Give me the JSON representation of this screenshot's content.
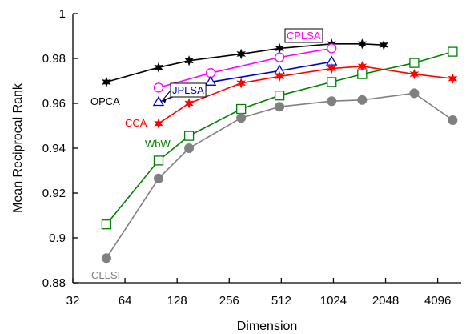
{
  "chart_data": {
    "type": "line",
    "xlabel": "Dimension",
    "ylabel": "Mean Reciprocal Rank",
    "x_scale": "log2",
    "xlim": [
      32,
      5600
    ],
    "ylim": [
      0.88,
      1.0
    ],
    "x_ticks": [
      32,
      64,
      128,
      256,
      512,
      1024,
      2048,
      4096
    ],
    "x_tick_labels": [
      "32",
      "64",
      "128",
      "256",
      "512",
      "1024",
      "2048",
      "4096"
    ],
    "y_ticks": [
      0.88,
      0.9,
      0.92,
      0.94,
      0.96,
      0.98,
      1.0
    ],
    "y_tick_labels": [
      "0.88",
      "0.9",
      "0.92",
      "0.94",
      "0.96",
      "0.98",
      "1"
    ],
    "grid": false,
    "legend": "none",
    "series": [
      {
        "name": "OPCA",
        "color": "#000000",
        "marker": "star",
        "x": [
          50,
          100,
          150,
          300,
          500,
          1000,
          1500,
          2000
        ],
        "y": [
          0.9695,
          0.976,
          0.979,
          0.982,
          0.9845,
          0.9865,
          0.9865,
          0.986
        ]
      },
      {
        "name": "CPLSA",
        "color": "#ff00ff",
        "marker": "circle-open",
        "x": [
          100,
          200,
          500,
          1000
        ],
        "y": [
          0.967,
          0.9735,
          0.9805,
          0.9845
        ]
      },
      {
        "name": "JPLSA",
        "color": "#0000cc",
        "marker": "triangle-open",
        "x": [
          100,
          200,
          500,
          1000
        ],
        "y": [
          0.9605,
          0.9695,
          0.9745,
          0.9785
        ]
      },
      {
        "name": "CCA",
        "color": "#ff0000",
        "marker": "star",
        "x": [
          100,
          150,
          300,
          500,
          1000,
          1500,
          3000,
          5000
        ],
        "y": [
          0.951,
          0.96,
          0.969,
          0.972,
          0.9755,
          0.9765,
          0.973,
          0.971
        ]
      },
      {
        "name": "WbW",
        "color": "#008000",
        "marker": "square-open",
        "x": [
          50,
          100,
          150,
          300,
          500,
          1000,
          1500,
          3000,
          5000
        ],
        "y": [
          0.906,
          0.9345,
          0.9455,
          0.9575,
          0.9635,
          0.9695,
          0.973,
          0.978,
          0.983
        ]
      },
      {
        "name": "CLLSI",
        "color": "#808080",
        "marker": "circle-filled",
        "x": [
          50,
          100,
          150,
          300,
          500,
          1000,
          1500,
          3000,
          5000
        ],
        "y": [
          0.891,
          0.9265,
          0.94,
          0.9535,
          0.9585,
          0.961,
          0.9615,
          0.9645,
          0.9525
        ]
      }
    ]
  }
}
